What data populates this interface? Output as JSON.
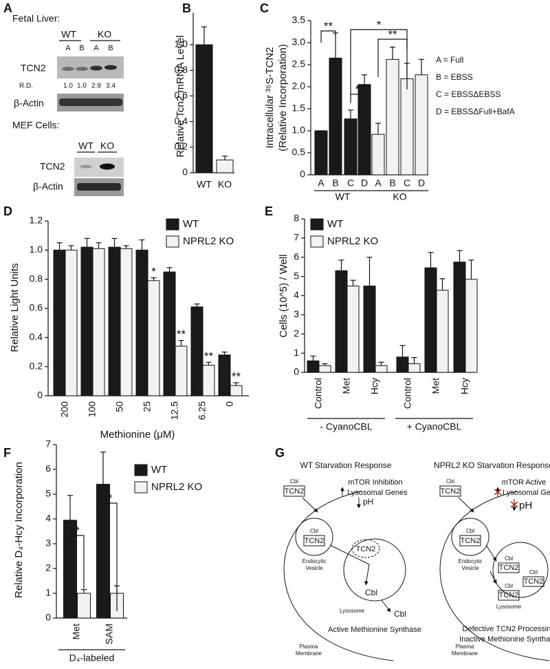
{
  "blots": {
    "panel": "A",
    "fetal_liver": {
      "title": "Fetal Liver:",
      "groups": [
        "WT",
        "KO"
      ],
      "lanes": [
        "A",
        "B",
        "A",
        "B"
      ],
      "target": "TCN2",
      "rd_label": "R.D.",
      "rd": [
        "1.0",
        "1.0",
        "2.9",
        "3.4"
      ],
      "loading": "β-Actin"
    },
    "mef": {
      "title": "MEF Cells:",
      "lanes": [
        "WT",
        "KO"
      ],
      "target": "TCN2",
      "loading": "β-Actin"
    }
  },
  "chart_data": [
    {
      "panel": "B",
      "type": "bar",
      "y_label": [
        "Relative Tcn2 mRNA Level"
      ],
      "categories": [
        "WT",
        "KO"
      ],
      "values": [
        1.0,
        0.1
      ],
      "errors": [
        0.14,
        0.03
      ],
      "colors": [
        "#1a1a1a",
        "#f2f2f2"
      ],
      "ylim": [
        0,
        1.25
      ],
      "yticks": [
        0,
        0.2,
        0.4,
        0.6,
        0.8,
        {
          "value": 1,
          "label": "1.0"
        }
      ]
    },
    {
      "panel": "C",
      "type": "bar",
      "y_label": [
        "Intracellular ³⁵S-TCN2",
        "(Relative Incorporation)"
      ],
      "categories": [
        "A",
        "B",
        "C",
        "D"
      ],
      "series": [
        {
          "name": "WT",
          "color": "#1a1a1a",
          "values": [
            1.0,
            2.65,
            1.27,
            2.05
          ],
          "errors": [
            0,
            0.57,
            0.2,
            0.22
          ]
        },
        {
          "name": "KO",
          "color": "#f2f2f2",
          "values": [
            0.92,
            2.62,
            2.18,
            2.27
          ],
          "errors": [
            0.25,
            0.28,
            0.35,
            0.35
          ]
        }
      ],
      "ylim": [
        0,
        3.5
      ],
      "yticks": [
        0,
        0.5,
        {
          "value": 1,
          "label": "1.0"
        },
        1.5,
        {
          "value": 2,
          "label": "2.0"
        },
        2.5,
        {
          "value": 3,
          "label": "3.0"
        },
        3.5
      ],
      "legend_text": [
        "A = Full",
        "B = EBSS",
        "C = EBSSΔEBSS",
        "D = EBSSΔFull+BafA"
      ],
      "annotations": [
        {
          "text": "**"
        },
        {
          "text": "*"
        },
        {
          "text": "*"
        },
        {
          "text": "**"
        }
      ]
    },
    {
      "panel": "D",
      "type": "bar",
      "y_label": [
        "Relative Light Units"
      ],
      "x_label": "Methionine (μM)",
      "categories": [
        "200",
        "100",
        "50",
        "25",
        "12.5",
        "6.25",
        "0"
      ],
      "series": [
        {
          "name": "WT",
          "color": "#1a1a1a",
          "values": [
            1.0,
            1.02,
            1.02,
            1.0,
            0.85,
            0.61,
            0.28
          ],
          "errors": [
            0.05,
            0.06,
            0.06,
            0.07,
            0.03,
            0.02,
            0.02
          ]
        },
        {
          "name": "NPRL2 KO",
          "color": "#f2f2f2",
          "values": [
            1.0,
            1.01,
            1.01,
            0.79,
            0.34,
            0.21,
            0.07
          ],
          "errors": [
            0.03,
            0.04,
            0.02,
            0.02,
            0.04,
            0.02,
            0.02
          ]
        }
      ],
      "ylim": [
        0,
        1.2
      ],
      "yticks": [
        0,
        0.2,
        0.4,
        0.6,
        0.8,
        {
          "value": 1,
          "label": "1.0"
        },
        1.2
      ],
      "annotations": [
        {
          "text": "*"
        },
        {
          "text": "**"
        },
        {
          "text": "**"
        },
        {
          "text": "**"
        }
      ]
    },
    {
      "panel": "E",
      "type": "bar",
      "y_label": [
        "Cells (10^5) / Well"
      ],
      "categories": [
        "Control",
        "Met",
        "Hcy",
        "Control",
        "Met",
        "Hcy"
      ],
      "series": [
        {
          "name": "WT",
          "color": "#1a1a1a",
          "values": [
            0.6,
            5.3,
            4.5,
            0.8,
            5.45,
            5.75
          ],
          "errors": [
            0.25,
            0.55,
            1.5,
            0.6,
            0.8,
            0.6
          ]
        },
        {
          "name": "NPRL2 KO",
          "color": "#f2f2f2",
          "values": [
            0.35,
            4.5,
            0.35,
            0.45,
            4.28,
            4.85
          ],
          "errors": [
            0.1,
            0.3,
            0.18,
            0.32,
            0.6,
            1.0
          ]
        }
      ],
      "ylim": [
        0,
        8
      ],
      "yticks": [
        0,
        1,
        2,
        3,
        4,
        5,
        6,
        7,
        8
      ],
      "groups": [
        {
          "label": "- CyanoCBL"
        },
        {
          "label": "+ CyanoCBL"
        }
      ]
    },
    {
      "panel": "F",
      "type": "bar",
      "y_label": [
        "Relative D₄-Hcy Incorporation"
      ],
      "categories": [
        "Met",
        "SAM"
      ],
      "series": [
        {
          "name": "WT",
          "color": "#1a1a1a",
          "values": [
            3.95,
            5.4
          ],
          "errors": [
            1.0,
            1.3
          ]
        },
        {
          "name": "NPRL2 KO",
          "color": "#f2f2f2",
          "values": [
            1.0,
            1.0
          ],
          "errors": [
            0.15,
            0.3
          ]
        }
      ],
      "ylim": [
        0,
        7
      ],
      "yticks": [
        0,
        1,
        2,
        3,
        4,
        5,
        6,
        7
      ],
      "groups": [
        {
          "label": "D₄-labeled"
        }
      ],
      "annotations": [
        {
          "text": "*"
        },
        {
          "text": "*"
        }
      ]
    }
  ],
  "diagram": {
    "panel": "G",
    "wt": {
      "title": "WT Starvation Response",
      "mtor": "mTOR Inhibition",
      "genes": "Lysosomal Genes",
      "ph": "pH",
      "outside": {
        "cbl": "Cbl",
        "tcn2": "TCN2"
      },
      "vesicle": {
        "cbl": "Cbl",
        "tcn2": "TCN2",
        "label": [
          "Endocytic",
          "Vesicle"
        ]
      },
      "lysosome": {
        "tcn2": "TCN2",
        "cbl": "Cbl",
        "label": "Lysosome"
      },
      "released": "Cbl",
      "outcome": [
        "Active Methionine Synthase"
      ],
      "membrane": [
        "Plasma",
        "Membrane"
      ]
    },
    "ko": {
      "title": "NPRL2 KO Starvation Response",
      "mtor": "mTOR Active",
      "genes": "Lysosomal Genes",
      "ph": "pH",
      "outside": {
        "cbl": "Cbl",
        "tcn2": "TCN2"
      },
      "vesicle": {
        "cbl": "Cbl",
        "tcn2": "TCN2",
        "label": [
          "Endocytic",
          "Vesicle"
        ]
      },
      "lysosome": {
        "complexes": [
          {
            "cbl": "Cbl",
            "tcn2": "TCN2"
          },
          {
            "cbl": "Cbl",
            "tcn2": "TCN2"
          },
          {
            "cbl": "Cbl",
            "tcn2": "TCN2"
          }
        ],
        "label": "Lysosome"
      },
      "outcome": [
        "Defective TCN2 Processing",
        "Inactive Methionine Synthase"
      ],
      "membrane": [
        "Plasma",
        "Membrane"
      ]
    }
  }
}
